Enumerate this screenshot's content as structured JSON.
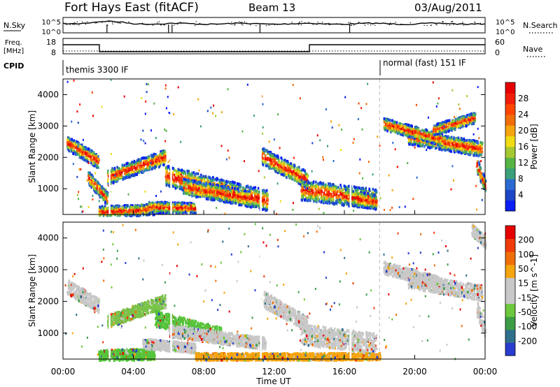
{
  "header": {
    "station": "Fort Hays East (fitACF)",
    "beam": "Beam 13",
    "date": "03/Aug/2011"
  },
  "side_labels": {
    "nsky": "N.Sky",
    "nsearch": "N.Search",
    "freq": "Freq.",
    "freq_unit": "[MHz]",
    "nave": "Nave",
    "cpid": "CPID"
  },
  "noise_panel": {
    "left_ticks": [
      "10^5",
      "10^0"
    ],
    "right_ticks": [
      "10^5",
      "10^0"
    ]
  },
  "freq_panel": {
    "left_ticks": [
      "18",
      "8"
    ],
    "right_ticks": [
      "60",
      "0"
    ]
  },
  "cpid_panel": {
    "programs": [
      "themis 3300 IF",
      "normal (fast) 151 IF"
    ]
  },
  "chart_data": [
    {
      "type": "heatmap",
      "panel": "power",
      "x": [
        "00:00",
        "04:00",
        "08:00",
        "12:00",
        "16:00",
        "20:00",
        "00:00"
      ],
      "xlabel": "Time UT",
      "ylabel": "Slant Range [km]",
      "y_ticks": [
        1000,
        2000,
        3000,
        4000
      ],
      "ylim": [
        180,
        4500
      ],
      "colorbar": {
        "label": "Power [dB]",
        "ticks": [
          "4",
          "8",
          "12",
          "16",
          "20",
          "24",
          "28"
        ],
        "colors": [
          "#0a1ef5",
          "#1c46c8",
          "#2b6ad2",
          "#3aa07a",
          "#56b446",
          "#a6c832",
          "#f0dc14",
          "#f5a50f",
          "#f06e0a",
          "#ff4600",
          "#f01e0a",
          "#e60000"
        ]
      },
      "structures": [
        {
          "t0": 0.2,
          "t1": 2.0,
          "r0": 2500,
          "r1": 1900,
          "w": 140
        },
        {
          "t0": 1.4,
          "t1": 2.5,
          "r0": 1400,
          "r1": 700,
          "w": 130
        },
        {
          "t0": 2.5,
          "t1": 5.8,
          "r0": 1400,
          "r1": 2050,
          "w": 150
        },
        {
          "t0": 2.0,
          "t1": 5.2,
          "r0": 300,
          "r1": 380,
          "w": 110
        },
        {
          "t0": 5.8,
          "t1": 11.6,
          "r0": 1450,
          "r1": 650,
          "w": 210
        },
        {
          "t0": 6.8,
          "t1": 10.6,
          "r0": 1100,
          "r1": 720,
          "w": 160
        },
        {
          "t0": 4.8,
          "t1": 7.5,
          "r0": 450,
          "r1": 420,
          "w": 110
        },
        {
          "t0": 11.2,
          "t1": 13.9,
          "r0": 2100,
          "r1": 1300,
          "w": 170
        },
        {
          "t0": 13.5,
          "t1": 17.8,
          "r0": 1000,
          "r1": 700,
          "w": 200
        },
        {
          "t0": 16.0,
          "t1": 17.8,
          "r0": 800,
          "r1": 600,
          "w": 150
        },
        {
          "t0": 19.6,
          "t1": 23.8,
          "r0": 2700,
          "r1": 2300,
          "w": 150
        },
        {
          "t0": 18.2,
          "t1": 21.5,
          "r0": 3100,
          "r1": 2600,
          "w": 120
        },
        {
          "t0": 21.0,
          "t1": 23.4,
          "r0": 2900,
          "r1": 3300,
          "w": 110
        },
        {
          "t0": 23.5,
          "t1": 24.0,
          "r0": 1800,
          "r1": 1100,
          "w": 150
        }
      ]
    },
    {
      "type": "heatmap",
      "panel": "velocity",
      "x": [
        "00:00",
        "04:00",
        "08:00",
        "12:00",
        "16:00",
        "20:00",
        "00:00"
      ],
      "xlabel": "Time UT",
      "ylabel": "Slant Range [km]",
      "y_ticks": [
        1000,
        2000,
        3000,
        4000
      ],
      "ylim": [
        180,
        4500
      ],
      "colorbar": {
        "label": "Velocity [m s^-1]",
        "ticks": [
          "200",
          "100",
          "50",
          "15",
          "-15",
          "-50",
          "-100",
          "-200"
        ],
        "colors": [
          "#2a3ccf",
          "#2f6f8c",
          "#3c9c46",
          "#6cc83c",
          "#c8c8c8",
          "#c8c8c8",
          "#f5a50f",
          "#f06e0a",
          "#f03c0a",
          "#e60000"
        ]
      },
      "structures": [
        {
          "t0": 0.2,
          "t1": 2.0,
          "r0": 2500,
          "r1": 1900,
          "w": 140,
          "c": "#c8c8c8"
        },
        {
          "t0": 2.5,
          "t1": 5.8,
          "r0": 1400,
          "r1": 2050,
          "w": 130,
          "c": "#7ac24a"
        },
        {
          "t0": 5.2,
          "t1": 9.0,
          "r0": 1500,
          "r1": 950,
          "w": 160,
          "c": "#55c43a"
        },
        {
          "t0": 6.0,
          "t1": 11.5,
          "r0": 1100,
          "r1": 700,
          "w": 120,
          "c": "#c8c8c8"
        },
        {
          "t0": 2.0,
          "t1": 5.2,
          "r0": 320,
          "r1": 380,
          "w": 110,
          "c": "#55c43a"
        },
        {
          "t0": 4.5,
          "t1": 7.5,
          "r0": 700,
          "r1": 560,
          "w": 100,
          "c": "#c8c8c8"
        },
        {
          "t0": 11.4,
          "t1": 13.9,
          "r0": 2100,
          "r1": 1300,
          "w": 160,
          "c": "#c8c8c8"
        },
        {
          "t0": 13.5,
          "t1": 17.8,
          "r0": 1000,
          "r1": 700,
          "w": 200,
          "c": "#c8c8c8"
        },
        {
          "t0": 7.5,
          "t1": 18.0,
          "r0": 260,
          "r1": 260,
          "w": 90,
          "c": "#f5a50f"
        },
        {
          "t0": 19.6,
          "t1": 23.8,
          "r0": 2700,
          "r1": 2300,
          "w": 150,
          "c": "#c8c8c8"
        },
        {
          "t0": 18.2,
          "t1": 21.5,
          "r0": 3100,
          "r1": 2600,
          "w": 120,
          "c": "#c8c8c8"
        },
        {
          "t0": 23.2,
          "t1": 24.0,
          "r0": 4300,
          "r1": 3900,
          "w": 120,
          "c": "#c8c8c8"
        },
        {
          "t0": 23.5,
          "t1": 24.0,
          "r0": 1800,
          "r1": 1100,
          "w": 150,
          "c": "#c8c8c8"
        }
      ]
    }
  ]
}
